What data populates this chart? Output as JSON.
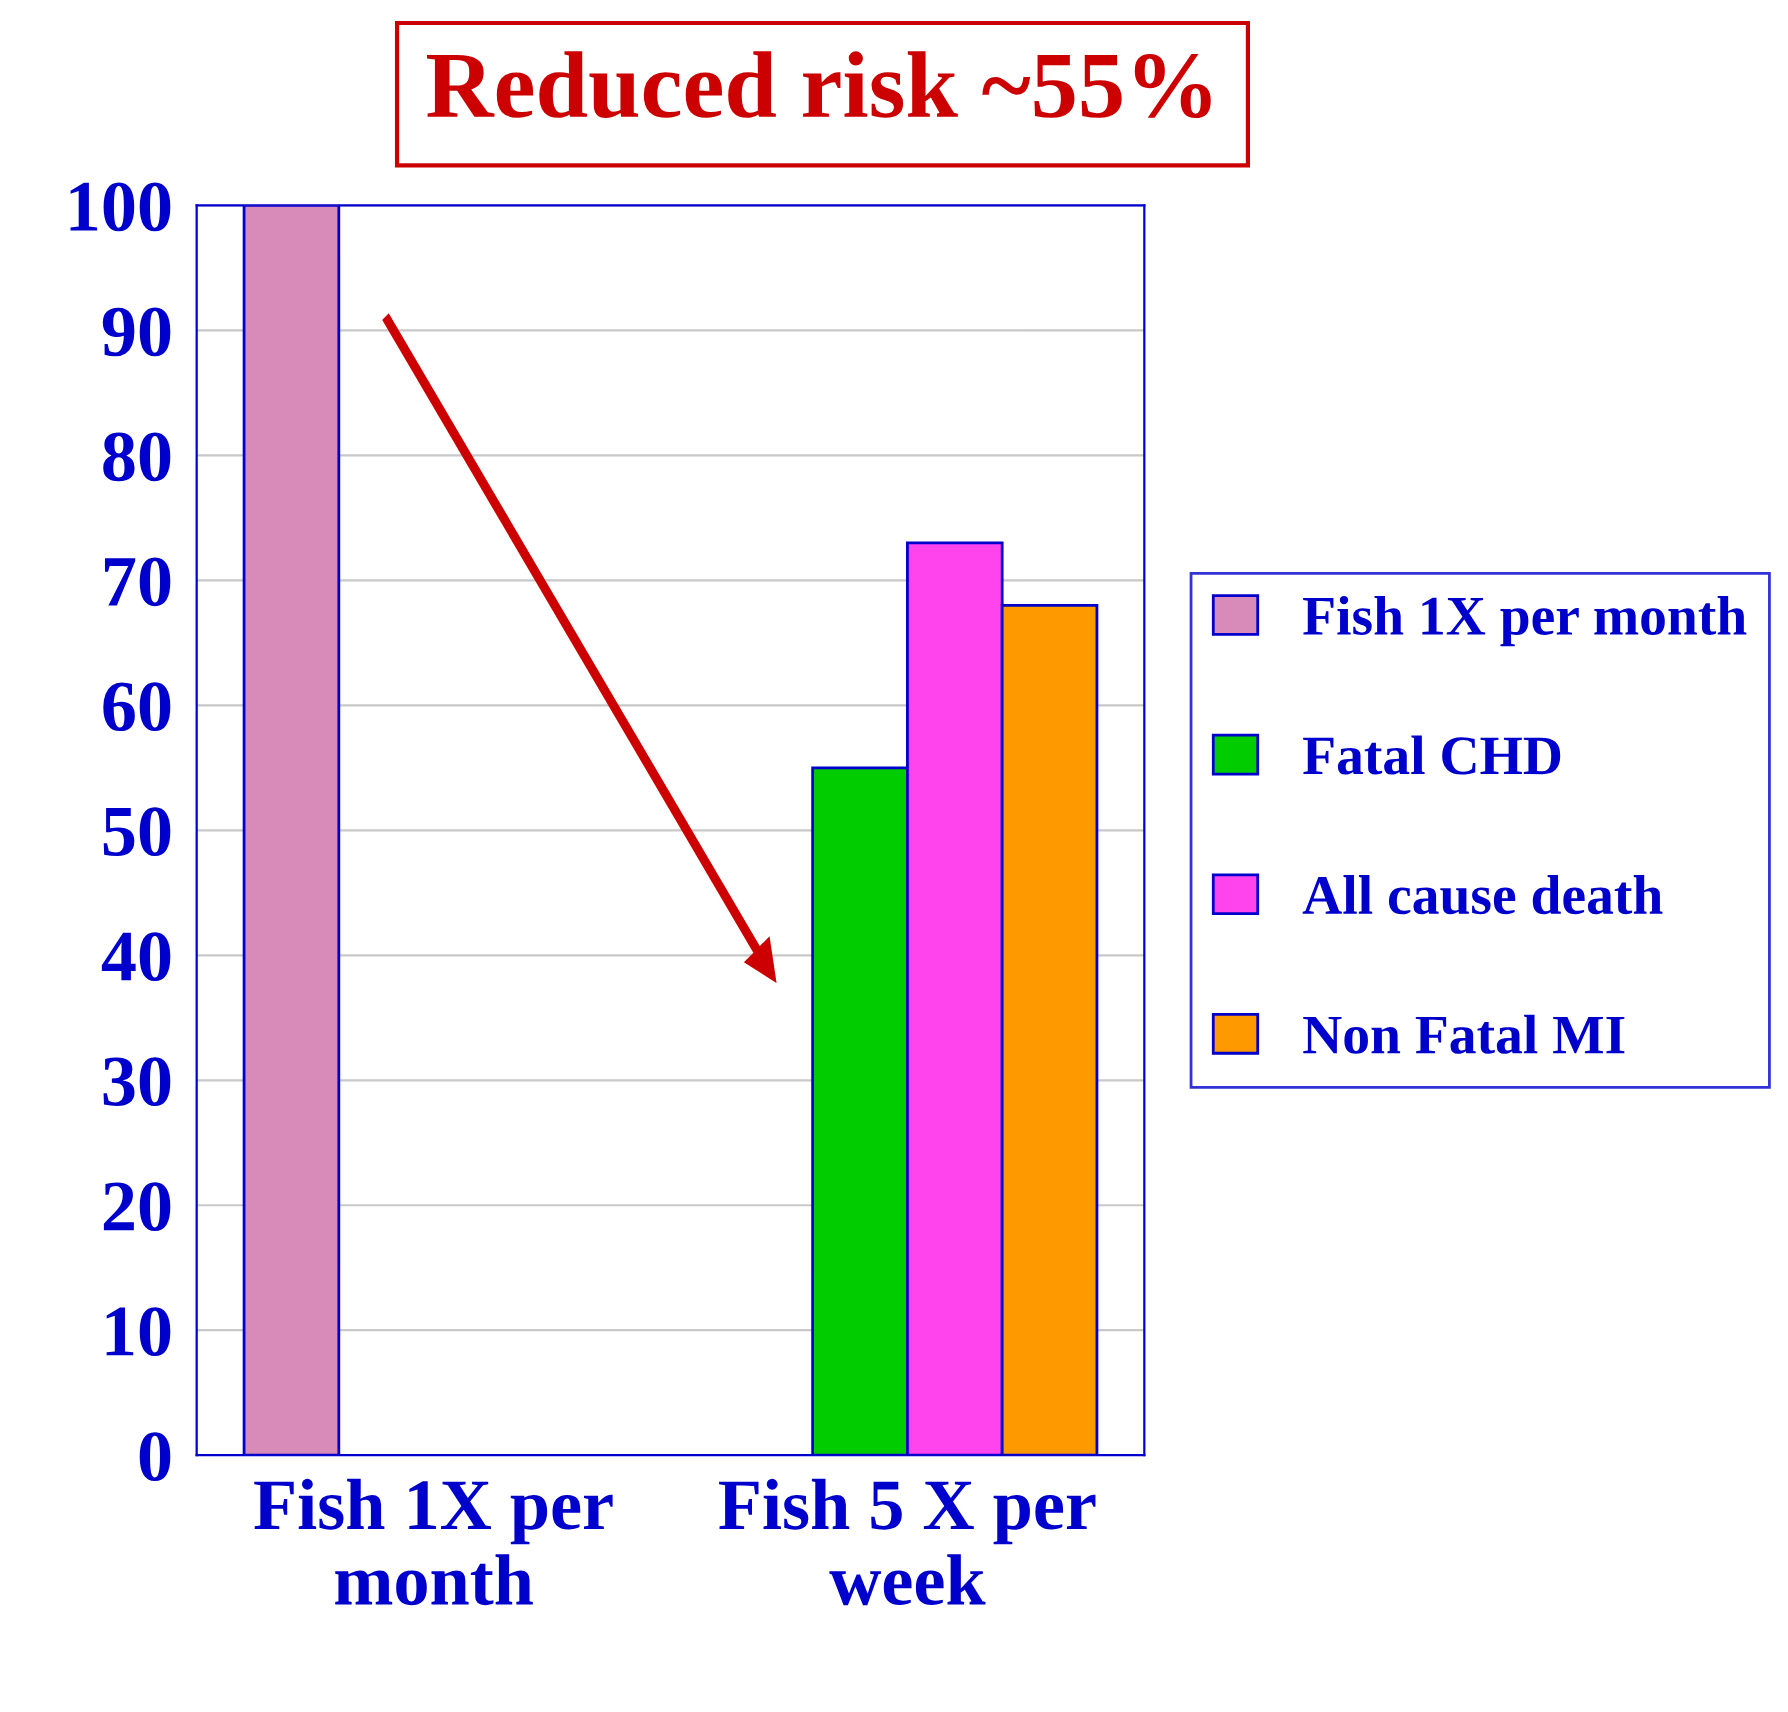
{
  "chart_data": {
    "type": "bar",
    "title": "Reduced risk ~55%",
    "categories": [
      "Fish 1X per month",
      "Fish 5 X per week"
    ],
    "series": [
      {
        "name": "Fish 1X per month",
        "color": "#d88ab8",
        "values": [
          100,
          null
        ]
      },
      {
        "name": "Fatal CHD",
        "color": "#00cc00",
        "values": [
          null,
          55
        ]
      },
      {
        "name": "All cause death",
        "color": "#ff44ee",
        "values": [
          null,
          73
        ]
      },
      {
        "name": "Non Fatal MI",
        "color": "#ff9900",
        "values": [
          null,
          68
        ]
      }
    ],
    "ylim": [
      0,
      100
    ],
    "yticks": [
      0,
      10,
      20,
      30,
      40,
      50,
      60,
      70,
      80,
      90,
      100
    ],
    "grid": "y",
    "legend": "right"
  }
}
